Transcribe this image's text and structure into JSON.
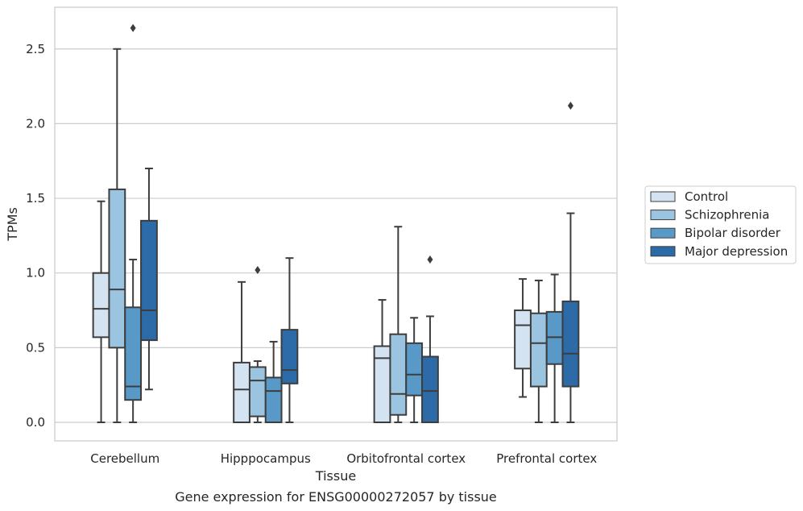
{
  "chart_data": {
    "type": "boxplot",
    "caption": "Gene expression for ENSG00000272057 by tissue",
    "xlabel": "Tissue",
    "ylabel": "TPMs",
    "ylim": [
      -0.13,
      2.78
    ],
    "yticks": [
      0.0,
      0.5,
      1.0,
      1.5,
      2.0,
      2.5
    ],
    "ytick_labels": [
      "0.0",
      "0.5",
      "1.0",
      "1.5",
      "2.0",
      "2.5"
    ],
    "grid": "horizontal",
    "legend_position": "right",
    "categories": [
      "Cerebellum",
      "Hipppocampus",
      "Orbitofrontal cortex",
      "Prefrontal cortex"
    ],
    "series": [
      {
        "name": "Control",
        "color": "#d4e3f2",
        "boxes": [
          {
            "whislo": 0.0,
            "q1": 0.57,
            "med": 0.76,
            "q3": 1.0,
            "whishi": 1.48,
            "fliers": []
          },
          {
            "whislo": 0.0,
            "q1": 0.0,
            "med": 0.22,
            "q3": 0.4,
            "whishi": 0.94,
            "fliers": []
          },
          {
            "whislo": 0.0,
            "q1": 0.0,
            "med": 0.43,
            "q3": 0.51,
            "whishi": 0.82,
            "fliers": []
          },
          {
            "whislo": 0.17,
            "q1": 0.36,
            "med": 0.65,
            "q3": 0.75,
            "whishi": 0.96,
            "fliers": []
          }
        ]
      },
      {
        "name": "Schizophrenia",
        "color": "#9ac4df",
        "boxes": [
          {
            "whislo": 0.0,
            "q1": 0.5,
            "med": 0.89,
            "q3": 1.56,
            "whishi": 2.5,
            "fliers": []
          },
          {
            "whislo": 0.0,
            "q1": 0.04,
            "med": 0.28,
            "q3": 0.37,
            "whishi": 0.41,
            "fliers": [
              1.02
            ]
          },
          {
            "whislo": 0.0,
            "q1": 0.05,
            "med": 0.19,
            "q3": 0.59,
            "whishi": 1.31,
            "fliers": []
          },
          {
            "whislo": 0.0,
            "q1": 0.24,
            "med": 0.53,
            "q3": 0.73,
            "whishi": 0.95,
            "fliers": []
          }
        ]
      },
      {
        "name": "Bipolar disorder",
        "color": "#5899c8",
        "boxes": [
          {
            "whislo": 0.0,
            "q1": 0.15,
            "med": 0.24,
            "q3": 0.77,
            "whishi": 1.09,
            "fliers": [
              2.64
            ]
          },
          {
            "whislo": 0.0,
            "q1": 0.0,
            "med": 0.21,
            "q3": 0.3,
            "whishi": 0.54,
            "fliers": []
          },
          {
            "whislo": 0.0,
            "q1": 0.18,
            "med": 0.32,
            "q3": 0.53,
            "whishi": 0.7,
            "fliers": []
          },
          {
            "whislo": 0.0,
            "q1": 0.39,
            "med": 0.57,
            "q3": 0.74,
            "whishi": 0.99,
            "fliers": []
          }
        ]
      },
      {
        "name": "Major depression",
        "color": "#2c6ba7",
        "boxes": [
          {
            "whislo": 0.22,
            "q1": 0.55,
            "med": 0.75,
            "q3": 1.35,
            "whishi": 1.7,
            "fliers": []
          },
          {
            "whislo": 0.0,
            "q1": 0.26,
            "med": 0.35,
            "q3": 0.62,
            "whishi": 1.1,
            "fliers": []
          },
          {
            "whislo": 0.0,
            "q1": 0.0,
            "med": 0.21,
            "q3": 0.44,
            "whishi": 0.71,
            "fliers": [
              1.09
            ]
          },
          {
            "whislo": 0.0,
            "q1": 0.24,
            "med": 0.46,
            "q3": 0.81,
            "whishi": 1.4,
            "fliers": [
              2.12
            ]
          }
        ]
      }
    ]
  }
}
